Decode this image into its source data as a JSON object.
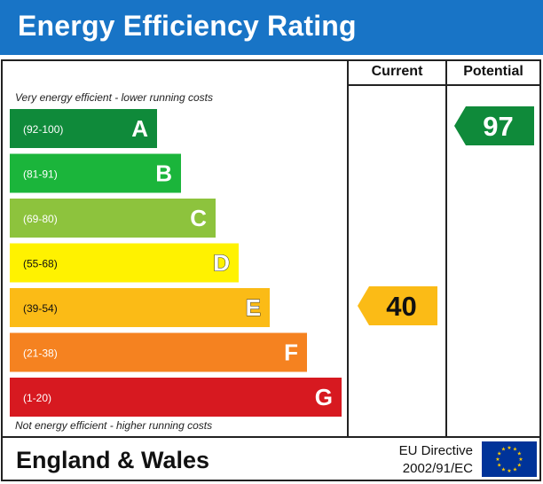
{
  "chart_data": {
    "type": "bar",
    "title": "Energy Efficiency Rating",
    "columns": [
      "Current",
      "Potential"
    ],
    "top_note": "Very energy efficient - lower running costs",
    "bottom_note": "Not energy efficient - higher running costs",
    "bands": [
      {
        "range": "(92-100)",
        "letter": "A",
        "min": 92,
        "max": 100,
        "color": "#0f8a3a"
      },
      {
        "range": "(81-91)",
        "letter": "B",
        "min": 81,
        "max": 91,
        "color": "#1bb53b"
      },
      {
        "range": "(69-80)",
        "letter": "C",
        "min": 69,
        "max": 80,
        "color": "#8dc33d"
      },
      {
        "range": "(55-68)",
        "letter": "D",
        "min": 55,
        "max": 68,
        "color": "#fff200"
      },
      {
        "range": "(39-54)",
        "letter": "E",
        "min": 39,
        "max": 54,
        "color": "#fbbb16"
      },
      {
        "range": "(21-38)",
        "letter": "F",
        "min": 21,
        "max": 38,
        "color": "#f58220"
      },
      {
        "range": "(1-20)",
        "letter": "G",
        "min": 1,
        "max": 20,
        "color": "#d71920"
      }
    ],
    "current": {
      "value": 40,
      "band": "E",
      "color": "#fbbb16"
    },
    "potential": {
      "value": 97,
      "band": "A",
      "color": "#0f8a3a"
    }
  },
  "footer": {
    "region": "England & Wales",
    "directive_line1": "EU Directive",
    "directive_line2": "2002/91/EC"
  },
  "colors": {
    "header_bg": "#1874c6",
    "eu_flag_bg": "#003399",
    "eu_star": "#ffcc00"
  }
}
